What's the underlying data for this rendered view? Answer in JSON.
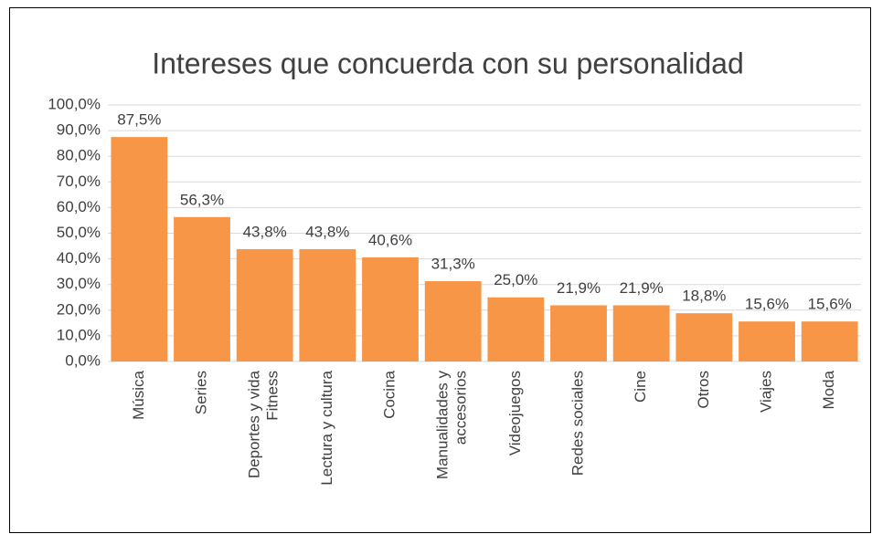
{
  "chart_data": {
    "type": "bar",
    "title": "Intereses que concuerda con su personalidad",
    "categories": [
      "Música",
      "Series",
      "Deportes y vida Fitness",
      "Lectura y cultura",
      "Cocina",
      "Manualidades y accesorios",
      "Videojuegos",
      "Redes sociales",
      "Cine",
      "Otros",
      "Viajes",
      "Moda"
    ],
    "values": [
      87.5,
      56.3,
      43.8,
      43.8,
      40.6,
      31.3,
      25.0,
      21.9,
      21.9,
      18.8,
      15.6,
      15.6
    ],
    "value_labels": [
      "87,5%",
      "56,3%",
      "43,8%",
      "43,8%",
      "40,6%",
      "31,3%",
      "25,0%",
      "21,9%",
      "21,9%",
      "18,8%",
      "15,6%",
      "15,6%"
    ],
    "color": "#f79646",
    "ylim": [
      0,
      100
    ],
    "yticks": [
      {
        "value": 0,
        "label": "0,0%"
      },
      {
        "value": 10,
        "label": "10,0%"
      },
      {
        "value": 20,
        "label": "20,0%"
      },
      {
        "value": 30,
        "label": "30,0%"
      },
      {
        "value": 40,
        "label": "40,0%"
      },
      {
        "value": 50,
        "label": "50,0%"
      },
      {
        "value": 60,
        "label": "60,0%"
      },
      {
        "value": 70,
        "label": "70,0%"
      },
      {
        "value": 80,
        "label": "80,0%"
      },
      {
        "value": 90,
        "label": "90,0%"
      },
      {
        "value": 100,
        "label": "100,0%"
      }
    ],
    "grid": true
  }
}
